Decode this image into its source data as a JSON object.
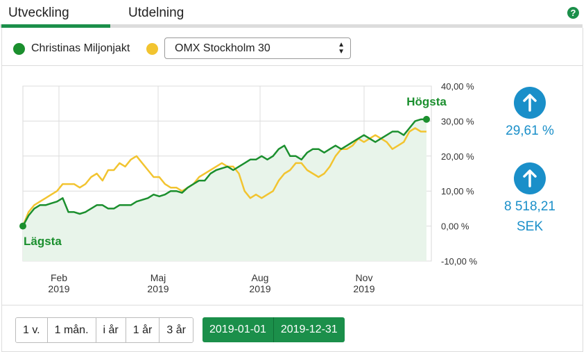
{
  "tabs": [
    {
      "label": "Utveckling",
      "active": true
    },
    {
      "label": "Utdelning",
      "active": false
    }
  ],
  "help_icon": "question-circle-icon",
  "legend": {
    "fund": {
      "label": "Christinas Miljonjakt",
      "color": "#1b8f2e"
    },
    "index": {
      "color": "#f2c430"
    }
  },
  "compare_select": {
    "selected": "OMX Stockholm 30"
  },
  "chart_data": {
    "type": "area",
    "yticks": [
      "40,00 %",
      "30,00 %",
      "20,00 %",
      "10,00 %",
      "0,00 %",
      "-10,00 %"
    ],
    "ylim": [
      -10,
      40
    ],
    "xticks": [
      {
        "month": "Feb",
        "year": "2019"
      },
      {
        "month": "Maj",
        "year": "2019"
      },
      {
        "month": "Aug",
        "year": "2019"
      },
      {
        "month": "Nov",
        "year": "2019"
      }
    ],
    "annotations": {
      "max": "Högsta",
      "min": "Lägsta"
    },
    "series": [
      {
        "color": "#1b8f2e",
        "values": [
          0,
          3,
          5,
          6,
          6,
          6.5,
          7,
          8,
          4,
          4,
          3.5,
          4,
          5,
          6,
          6,
          5,
          5,
          6,
          6,
          6,
          7,
          7.5,
          8,
          9,
          8.5,
          9,
          10,
          10,
          9.5,
          11,
          12,
          13,
          13,
          15,
          16,
          16.5,
          17,
          16,
          17,
          18,
          19,
          19,
          20,
          19,
          20,
          22,
          23,
          20,
          20,
          19,
          21,
          22,
          22,
          21,
          22,
          23,
          22,
          23,
          24,
          25,
          26,
          25,
          24,
          25,
          26,
          27,
          27,
          26,
          28,
          30,
          30.5,
          30.5
        ]
      },
      {
        "color": "#f2c430",
        "values": [
          0,
          4,
          6,
          7,
          8,
          9,
          10,
          12,
          12,
          12,
          11,
          12,
          14,
          15,
          13,
          16,
          16,
          18,
          17,
          19,
          20,
          18,
          16,
          14,
          14,
          12,
          11,
          11,
          10,
          11,
          12,
          14,
          15,
          16,
          17,
          18,
          17,
          17,
          15,
          10,
          8,
          9,
          8,
          9,
          10,
          13,
          15,
          16,
          18,
          18,
          16,
          15,
          14,
          15,
          17,
          20,
          22,
          22,
          23,
          25,
          24,
          25,
          26,
          25,
          24,
          22,
          23,
          24,
          27,
          28,
          27,
          27
        ]
      }
    ]
  },
  "stats": {
    "return_pct": "29,61 %",
    "value_amount": "8 518,21",
    "value_currency": "SEK",
    "icon": "arrow-up-icon"
  },
  "period_buttons": [
    "1 v.",
    "1 mån.",
    "i år",
    "1 år",
    "3 år"
  ],
  "date_range": {
    "from": "2019-01-01",
    "to": "2019-12-31"
  }
}
